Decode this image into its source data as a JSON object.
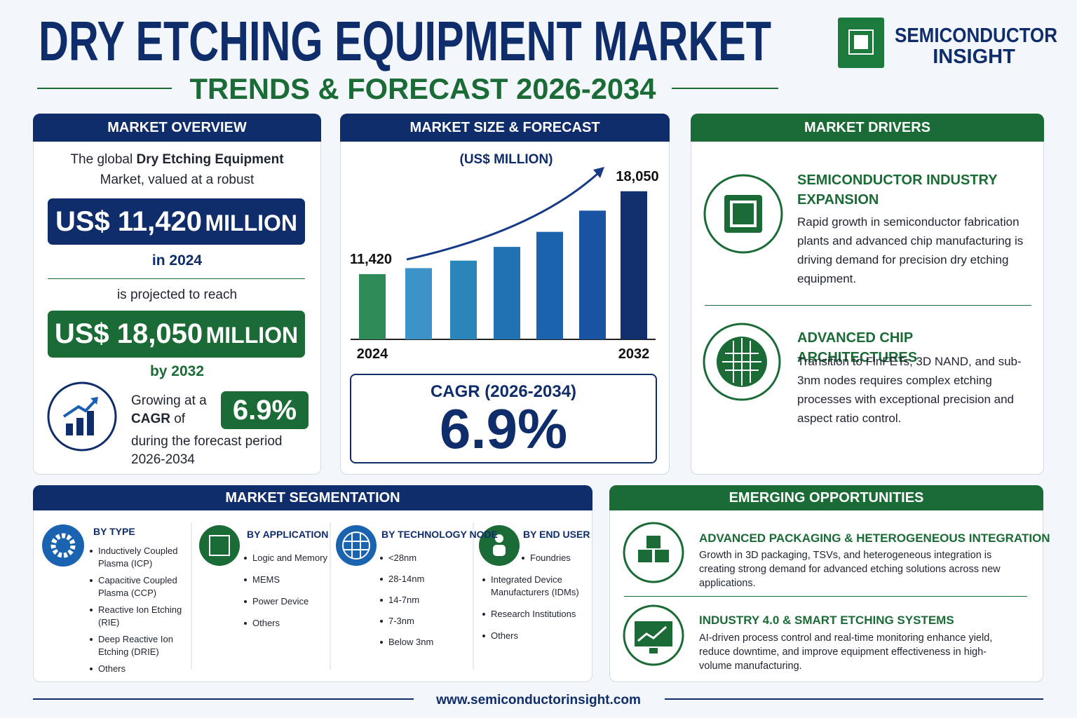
{
  "header": {
    "title": "DRY ETCHING EQUIPMENT MARKET",
    "subtitle": "TRENDS & FORECAST 2026-2034",
    "logo_line1": "SEMICONDUCTOR",
    "logo_line2": "INSIGHT"
  },
  "overview": {
    "heading": "MARKET OVERVIEW",
    "intro_pre": "The global",
    "intro_bold": "Dry Etching Equipment",
    "intro_post": "Market, valued at a robust",
    "value_2024": "US$ 11,420",
    "unit_2024": "MILLION",
    "year_2024": "in 2024",
    "projected": "is projected to reach",
    "value_2032": "US$ 18,050",
    "unit_2032": "MILLION",
    "year_2032": "by 2032",
    "growing": "Growing at a",
    "cagr_bold": "CAGR",
    "cagr_of": "of",
    "period": "during the forecast period 2026-2034",
    "cagr_badge": "6.9%"
  },
  "chart_data": {
    "type": "bar",
    "title": "MARKET SIZE & FORECAST",
    "subtitle": "(US$ MILLION)",
    "categories": [
      "2024",
      null,
      null,
      null,
      null,
      null,
      "2032"
    ],
    "values": [
      11420,
      11900,
      12500,
      13600,
      14800,
      16500,
      18050
    ],
    "value_labels": [
      "11,420",
      null,
      null,
      null,
      null,
      null,
      "18,050"
    ],
    "colors": [
      "#2e8b57",
      "#3b93c8",
      "#2a86b8",
      "#2172b2",
      "#1c63ad",
      "#1a53a2",
      "#13306e"
    ],
    "ylim": [
      6200,
      20000
    ]
  },
  "forecast": {
    "cagr_label": "CAGR (2026-2034)",
    "cagr_value": "6.9%"
  },
  "drivers": {
    "heading": "MARKET DRIVERS",
    "items": [
      {
        "title": "SEMICONDUCTOR INDUSTRY EXPANSION",
        "text": "Rapid growth in semiconductor fabrication plants and advanced chip manufacturing is driving demand for precision dry etching equipment."
      },
      {
        "title": "ADVANCED CHIP ARCHITECTURES",
        "text": "Transition to FinFETs, 3D NAND, and sub-3nm nodes requires complex etching processes with exceptional precision and aspect ratio control."
      }
    ]
  },
  "segmentation": {
    "heading": "MARKET SEGMENTATION",
    "groups": [
      {
        "title": "BY TYPE",
        "items": [
          "Inductively Coupled Plasma (ICP)",
          "Capacitive Coupled Plasma (CCP)",
          "Reactive Ion Etching (RIE)",
          "Deep Reactive Ion Etching (DRIE)",
          "Others"
        ]
      },
      {
        "title": "BY APPLICATION",
        "items": [
          "Logic and Memory",
          "MEMS",
          "Power Device",
          "Others"
        ]
      },
      {
        "title": "BY TECHNOLOGY NODE",
        "items": [
          "<28nm",
          "28-14nm",
          "14-7nm",
          "7-3nm",
          "Below 3nm"
        ]
      },
      {
        "title": "BY END USER",
        "items": [
          "Foundries",
          "Integrated Device Manufacturers (IDMs)",
          "Research Institutions",
          "Others"
        ]
      }
    ]
  },
  "opportunities": {
    "heading": "EMERGING OPPORTUNITIES",
    "items": [
      {
        "title": "ADVANCED PACKAGING & HETEROGENEOUS INTEGRATION",
        "text": "Growth in 3D packaging, TSVs, and heterogeneous integration is creating strong demand for advanced etching solutions across new applications."
      },
      {
        "title": "INDUSTRY 4.0 & SMART ETCHING SYSTEMS",
        "text": "AI-driven process control and real-time monitoring enhance yield, reduce downtime, and improve equipment effectiveness in high-volume manufacturing."
      }
    ]
  },
  "footer": {
    "url": "www.semiconductorinsight.com"
  }
}
